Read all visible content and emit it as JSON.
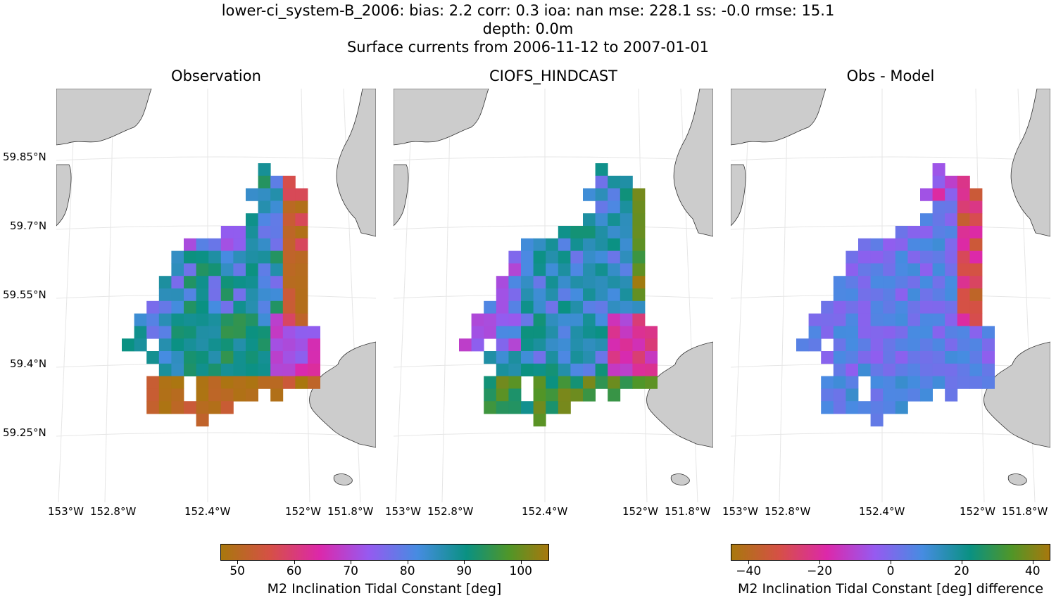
{
  "suptitle": {
    "line1": "lower-ci_system-B_2006: bias: 2.2  corr: 0.3  ioa: nan  mse: 228.1  ss: -0.0  rmse: 15.1",
    "line2": "depth: 0.0m",
    "line3": "Surface currents from 2006-11-12 to 2007-01-01"
  },
  "panels": [
    {
      "title": "Observation"
    },
    {
      "title": "CIOFS_HINDCAST"
    },
    {
      "title": "Obs - Model"
    }
  ],
  "lat_labels": [
    "59.85°N",
    "59.7°N",
    "59.55°N",
    "59.4°N",
    "59.25°N"
  ],
  "lon_labels": [
    "153°W",
    "152.8°W",
    "152.4°W",
    "152°W",
    "151.8°W"
  ],
  "colorbars": [
    {
      "label": "M2 Inclination Tidal Constant [deg]",
      "ticks": [
        "50",
        "60",
        "70",
        "80",
        "90",
        "100"
      ],
      "range": [
        47,
        105
      ]
    },
    {
      "label": "M2 Inclination Tidal Constant [deg] difference",
      "ticks": [
        "−40",
        "−20",
        "0",
        "20",
        "40"
      ],
      "range": [
        -45,
        45
      ]
    }
  ],
  "colors": {
    "land": "#cccccc",
    "grid": "#e6e6e6"
  }
}
